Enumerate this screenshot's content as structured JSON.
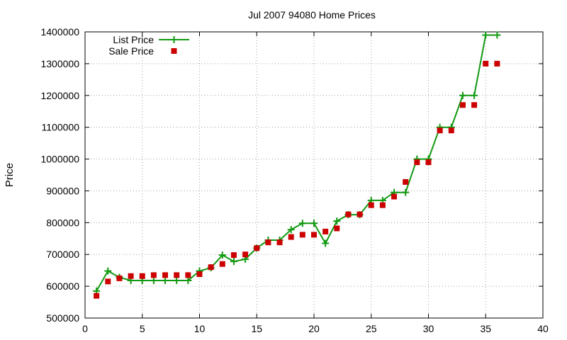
{
  "chart_data": {
    "type": "line",
    "title": "Jul 2007 94080 Home Prices",
    "xlabel": "",
    "ylabel": "Price",
    "xlim": [
      0,
      40
    ],
    "ylim": [
      500000,
      1400000
    ],
    "x_ticks": [
      0,
      5,
      10,
      15,
      20,
      25,
      30,
      35,
      40
    ],
    "y_ticks": [
      500000,
      600000,
      700000,
      800000,
      900000,
      1000000,
      1100000,
      1200000,
      1300000,
      1400000
    ],
    "grid": true,
    "legend_position": "top-left",
    "series": [
      {
        "name": "List Price",
        "style": "line-points",
        "marker": "plus",
        "color": "#119911",
        "x": [
          1,
          2,
          3,
          4,
          5,
          6,
          7,
          8,
          9,
          10,
          11,
          12,
          13,
          14,
          15,
          16,
          17,
          18,
          19,
          20,
          21,
          22,
          23,
          24,
          25,
          26,
          27,
          28,
          29,
          30,
          31,
          32,
          33,
          34,
          35,
          36
        ],
        "values": [
          585000,
          648000,
          628000,
          618000,
          618000,
          618000,
          618000,
          618000,
          618000,
          648000,
          658000,
          698000,
          678000,
          685000,
          720000,
          745000,
          745000,
          778000,
          798000,
          798000,
          735000,
          805000,
          825000,
          825000,
          870000,
          870000,
          895000,
          895000,
          1000000,
          1000000,
          1100000,
          1100000,
          1200000,
          1200000,
          1390000,
          1390000
        ]
      },
      {
        "name": "Sale Price",
        "style": "points",
        "marker": "square",
        "color": "#cc0000",
        "x": [
          1,
          2,
          3,
          4,
          5,
          6,
          7,
          8,
          9,
          10,
          11,
          12,
          13,
          14,
          15,
          16,
          17,
          18,
          19,
          20,
          21,
          22,
          23,
          24,
          25,
          26,
          27,
          28,
          29,
          30,
          31,
          32,
          33,
          34,
          35,
          36
        ],
        "values": [
          570000,
          615000,
          625000,
          632000,
          632000,
          635000,
          635000,
          635000,
          635000,
          638000,
          660000,
          670000,
          698000,
          700000,
          720000,
          738000,
          738000,
          755000,
          762000,
          762000,
          772000,
          782000,
          826000,
          826000,
          855000,
          855000,
          882000,
          928000,
          990000,
          990000,
          1090000,
          1090000,
          1170000,
          1170000,
          1300000,
          1300000
        ]
      }
    ]
  }
}
